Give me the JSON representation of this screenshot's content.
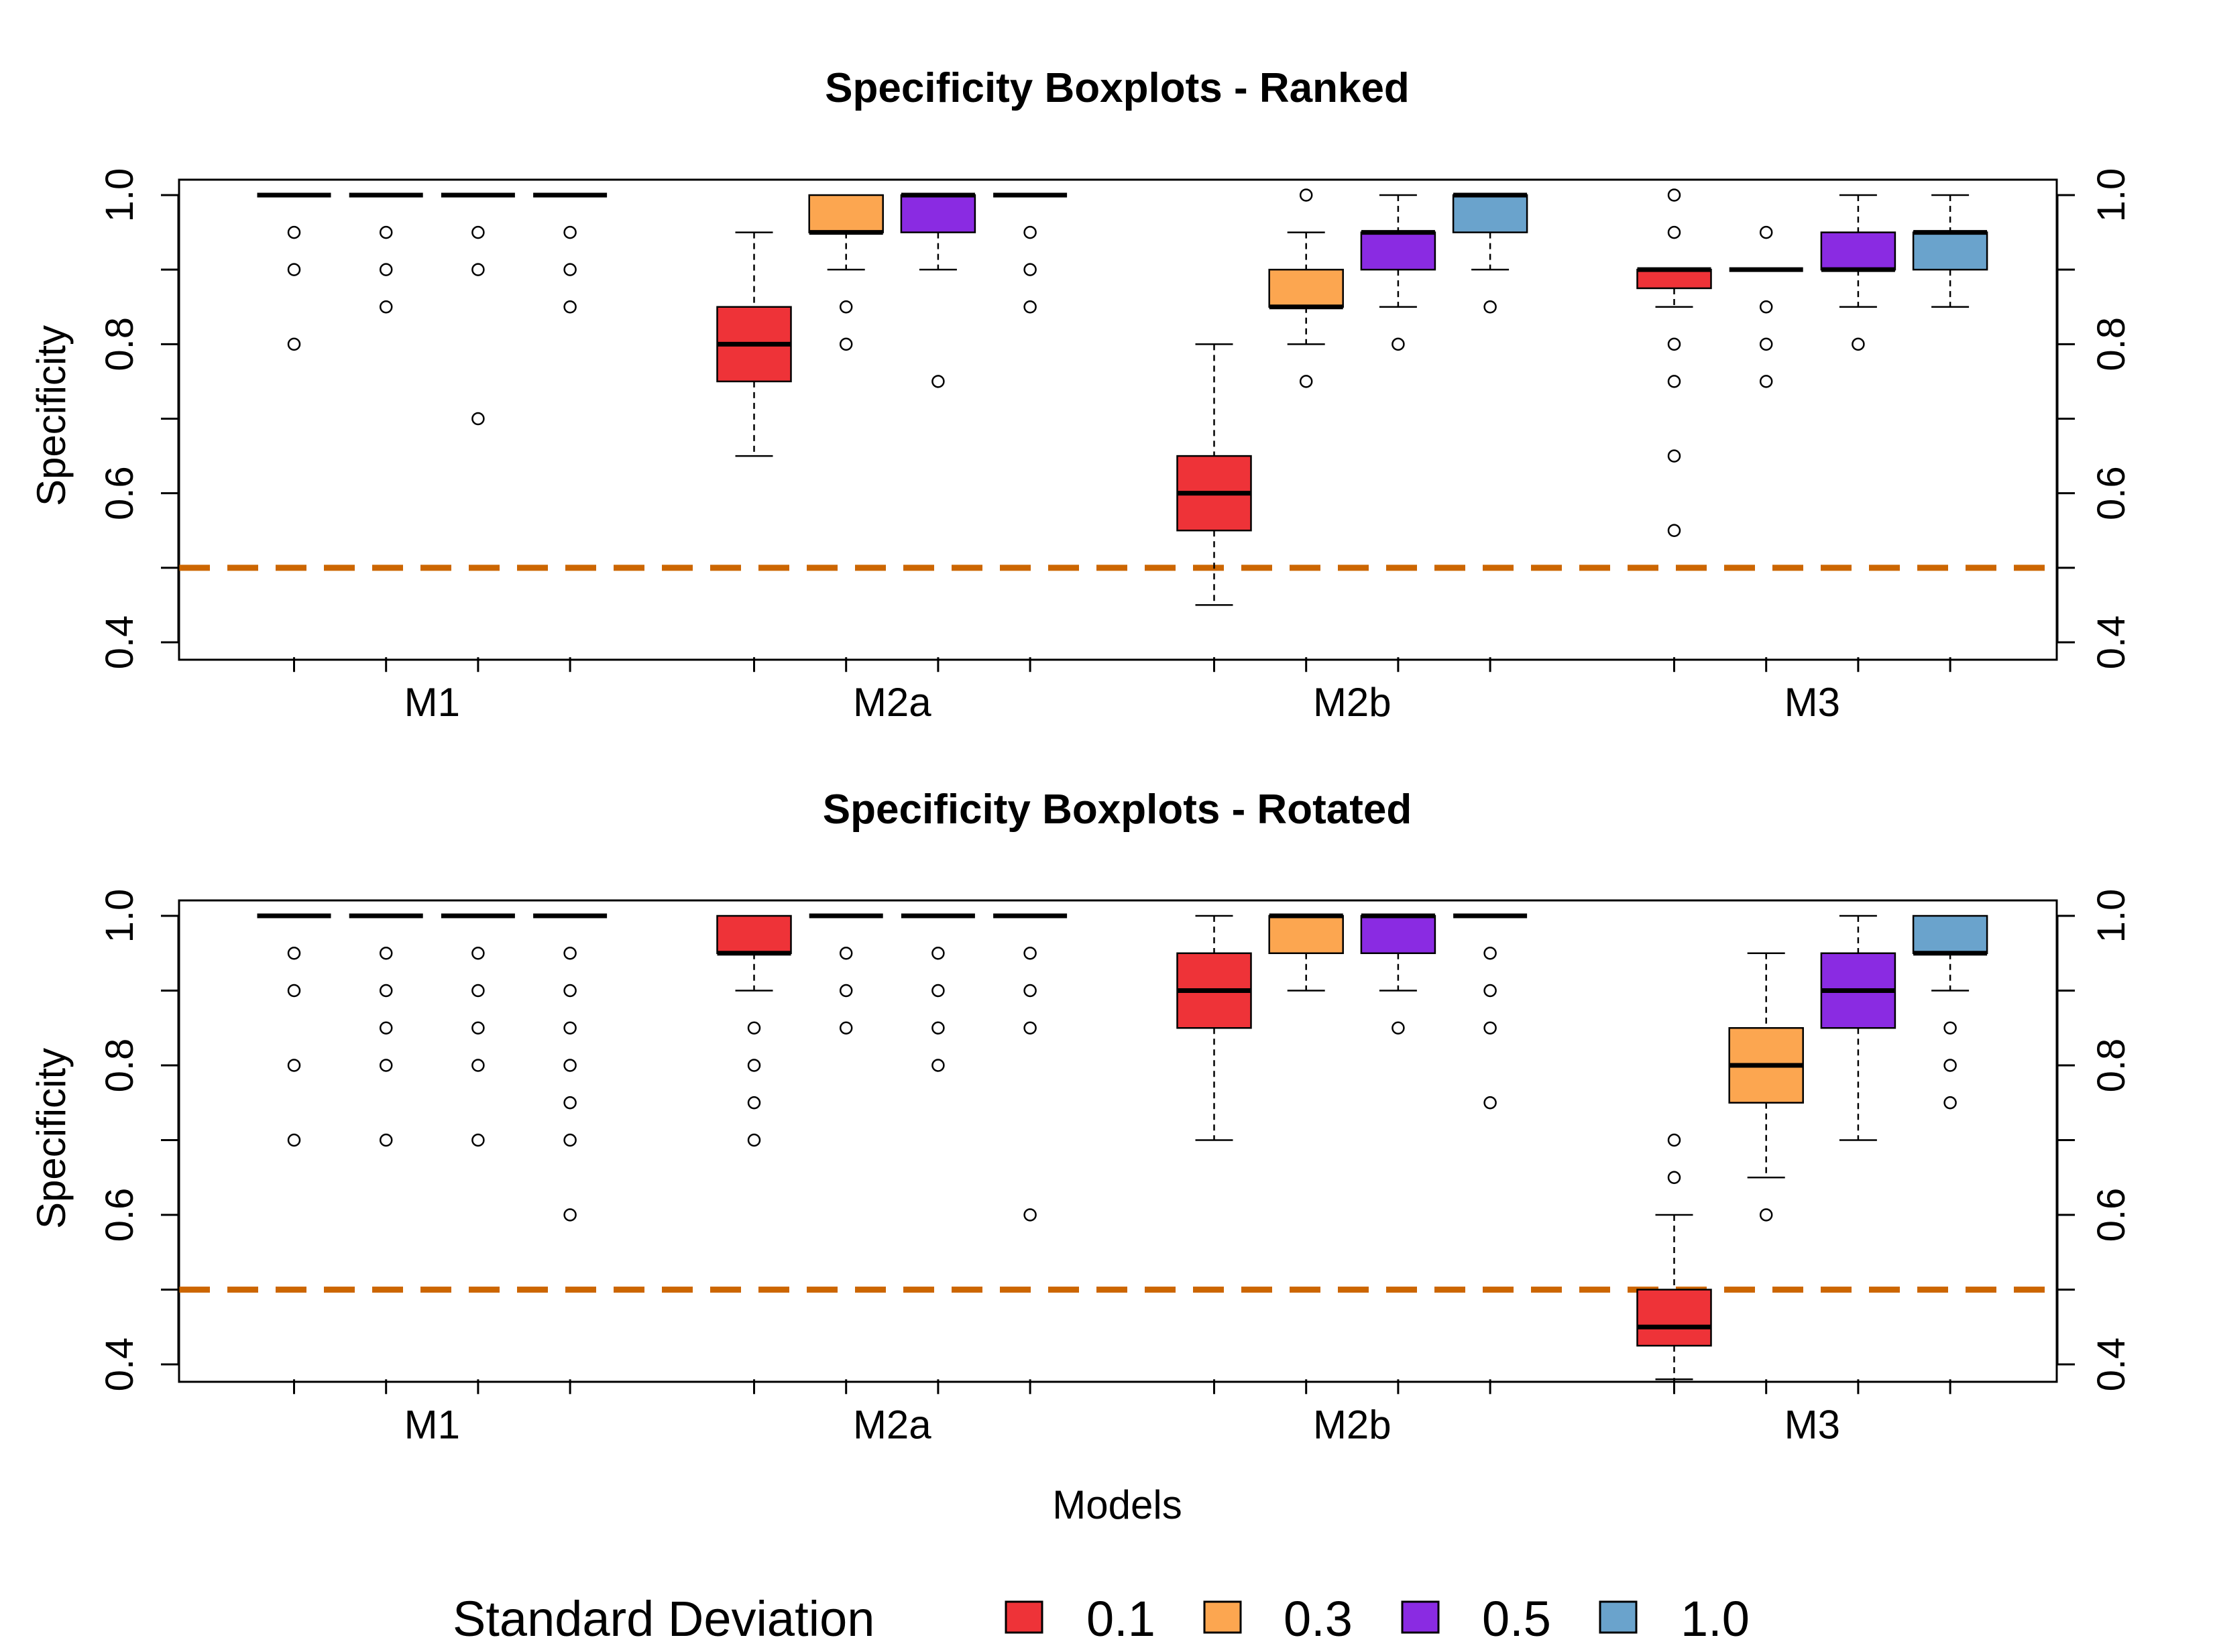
{
  "colors": {
    "sd_0.1": "#ee3338",
    "sd_0.3": "#fca650",
    "sd_0.5": "#8a2be2",
    "sd_1.0": "#6aa3cc",
    "reference_line": "#cc6600"
  },
  "legend": {
    "title": "Standard Deviation",
    "entries": [
      {
        "label": "0.1",
        "color": "#ee3338"
      },
      {
        "label": "0.3",
        "color": "#fca650"
      },
      {
        "label": "0.5",
        "color": "#8a2be2"
      },
      {
        "label": "1.0",
        "color": "#6aa3cc"
      }
    ],
    "placement": "bottom"
  },
  "chart_data": [
    {
      "type": "boxplot",
      "title": "Specificity Boxplots - Ranked",
      "xlabel": "",
      "ylabel": "Specificity",
      "ylim": [
        0.38,
        1.02
      ],
      "yticks": [
        "0.4",
        "0.6",
        "0.8",
        "1.0"
      ],
      "right_axis": true,
      "reference_line": 0.5,
      "categories": [
        "M1",
        "M2a",
        "M2b",
        "M3"
      ],
      "series_names": [
        "0.1",
        "0.3",
        "0.5",
        "1.0"
      ],
      "groups": [
        {
          "category": "M1",
          "boxes": [
            {
              "q1": 1.0,
              "median": 1.0,
              "q3": 1.0,
              "lo": 1.0,
              "hi": 1.0,
              "outliers": [
                0.95,
                0.9,
                0.8
              ]
            },
            {
              "q1": 1.0,
              "median": 1.0,
              "q3": 1.0,
              "lo": 1.0,
              "hi": 1.0,
              "outliers": [
                0.95,
                0.9,
                0.85
              ]
            },
            {
              "q1": 1.0,
              "median": 1.0,
              "q3": 1.0,
              "lo": 1.0,
              "hi": 1.0,
              "outliers": [
                0.95,
                0.9,
                0.7
              ]
            },
            {
              "q1": 1.0,
              "median": 1.0,
              "q3": 1.0,
              "lo": 1.0,
              "hi": 1.0,
              "outliers": [
                0.95,
                0.9,
                0.85
              ]
            }
          ]
        },
        {
          "category": "M2a",
          "boxes": [
            {
              "q1": 0.75,
              "median": 0.8,
              "q3": 0.85,
              "lo": 0.65,
              "hi": 0.95,
              "outliers": []
            },
            {
              "q1": 0.95,
              "median": 0.95,
              "q3": 1.0,
              "lo": 0.9,
              "hi": 1.0,
              "outliers": [
                0.85,
                0.8
              ]
            },
            {
              "q1": 0.95,
              "median": 1.0,
              "q3": 1.0,
              "lo": 0.9,
              "hi": 1.0,
              "outliers": [
                0.75
              ]
            },
            {
              "q1": 1.0,
              "median": 1.0,
              "q3": 1.0,
              "lo": 1.0,
              "hi": 1.0,
              "outliers": [
                0.95,
                0.9,
                0.85
              ]
            }
          ]
        },
        {
          "category": "M2b",
          "boxes": [
            {
              "q1": 0.55,
              "median": 0.6,
              "q3": 0.65,
              "lo": 0.45,
              "hi": 0.8,
              "outliers": []
            },
            {
              "q1": 0.85,
              "median": 0.85,
              "q3": 0.9,
              "lo": 0.8,
              "hi": 0.95,
              "outliers": [
                1.0,
                0.75
              ]
            },
            {
              "q1": 0.9,
              "median": 0.95,
              "q3": 0.95,
              "lo": 0.85,
              "hi": 1.0,
              "outliers": [
                0.8
              ]
            },
            {
              "q1": 0.95,
              "median": 1.0,
              "q3": 1.0,
              "lo": 0.9,
              "hi": 1.0,
              "outliers": [
                0.85
              ]
            }
          ]
        },
        {
          "category": "M3",
          "boxes": [
            {
              "q1": 0.875,
              "median": 0.9,
              "q3": 0.9,
              "lo": 0.85,
              "hi": 0.9,
              "outliers": [
                1.0,
                0.95,
                0.8,
                0.75,
                0.65,
                0.55
              ]
            },
            {
              "q1": 0.9,
              "median": 0.9,
              "q3": 0.9,
              "lo": 0.9,
              "hi": 0.9,
              "outliers": [
                0.95,
                0.85,
                0.8,
                0.75
              ]
            },
            {
              "q1": 0.9,
              "median": 0.9,
              "q3": 0.95,
              "lo": 0.85,
              "hi": 1.0,
              "outliers": [
                0.8
              ]
            },
            {
              "q1": 0.9,
              "median": 0.95,
              "q3": 0.95,
              "lo": 0.85,
              "hi": 1.0,
              "outliers": []
            }
          ]
        }
      ]
    },
    {
      "type": "boxplot",
      "title": "Specificity Boxplots - Rotated",
      "xlabel": "Models",
      "ylabel": "Specificity",
      "ylim": [
        0.38,
        1.02
      ],
      "yticks": [
        "0.4",
        "0.6",
        "0.8",
        "1.0"
      ],
      "right_axis": true,
      "reference_line": 0.5,
      "categories": [
        "M1",
        "M2a",
        "M2b",
        "M3"
      ],
      "series_names": [
        "0.1",
        "0.3",
        "0.5",
        "1.0"
      ],
      "groups": [
        {
          "category": "M1",
          "boxes": [
            {
              "q1": 1.0,
              "median": 1.0,
              "q3": 1.0,
              "lo": 1.0,
              "hi": 1.0,
              "outliers": [
                0.95,
                0.9,
                0.8,
                0.7
              ]
            },
            {
              "q1": 1.0,
              "median": 1.0,
              "q3": 1.0,
              "lo": 1.0,
              "hi": 1.0,
              "outliers": [
                0.95,
                0.9,
                0.85,
                0.8,
                0.7
              ]
            },
            {
              "q1": 1.0,
              "median": 1.0,
              "q3": 1.0,
              "lo": 1.0,
              "hi": 1.0,
              "outliers": [
                0.95,
                0.9,
                0.85,
                0.8,
                0.7
              ]
            },
            {
              "q1": 1.0,
              "median": 1.0,
              "q3": 1.0,
              "lo": 1.0,
              "hi": 1.0,
              "outliers": [
                0.95,
                0.9,
                0.85,
                0.8,
                0.75,
                0.7,
                0.6
              ]
            }
          ]
        },
        {
          "category": "M2a",
          "boxes": [
            {
              "q1": 0.95,
              "median": 0.95,
              "q3": 1.0,
              "lo": 0.9,
              "hi": 1.0,
              "outliers": [
                0.85,
                0.8,
                0.75,
                0.7
              ]
            },
            {
              "q1": 1.0,
              "median": 1.0,
              "q3": 1.0,
              "lo": 1.0,
              "hi": 1.0,
              "outliers": [
                0.95,
                0.9,
                0.85
              ]
            },
            {
              "q1": 1.0,
              "median": 1.0,
              "q3": 1.0,
              "lo": 1.0,
              "hi": 1.0,
              "outliers": [
                0.95,
                0.9,
                0.85,
                0.8
              ]
            },
            {
              "q1": 1.0,
              "median": 1.0,
              "q3": 1.0,
              "lo": 1.0,
              "hi": 1.0,
              "outliers": [
                0.95,
                0.9,
                0.85,
                0.6
              ]
            }
          ]
        },
        {
          "category": "M2b",
          "boxes": [
            {
              "q1": 0.85,
              "median": 0.9,
              "q3": 0.95,
              "lo": 0.7,
              "hi": 1.0,
              "outliers": []
            },
            {
              "q1": 0.95,
              "median": 1.0,
              "q3": 1.0,
              "lo": 0.9,
              "hi": 1.0,
              "outliers": []
            },
            {
              "q1": 0.95,
              "median": 1.0,
              "q3": 1.0,
              "lo": 0.9,
              "hi": 1.0,
              "outliers": [
                0.85
              ]
            },
            {
              "q1": 1.0,
              "median": 1.0,
              "q3": 1.0,
              "lo": 1.0,
              "hi": 1.0,
              "outliers": [
                0.95,
                0.9,
                0.85,
                0.75
              ]
            }
          ]
        },
        {
          "category": "M3",
          "boxes": [
            {
              "q1": 0.425,
              "median": 0.45,
              "q3": 0.5,
              "lo": 0.38,
              "hi": 0.6,
              "outliers": [
                0.7,
                0.65
              ]
            },
            {
              "q1": 0.75,
              "median": 0.8,
              "q3": 0.85,
              "lo": 0.65,
              "hi": 0.95,
              "outliers": [
                0.6
              ]
            },
            {
              "q1": 0.85,
              "median": 0.9,
              "q3": 0.95,
              "lo": 0.7,
              "hi": 1.0,
              "outliers": []
            },
            {
              "q1": 0.95,
              "median": 0.95,
              "q3": 1.0,
              "lo": 0.9,
              "hi": 1.0,
              "outliers": [
                0.85,
                0.8,
                0.75
              ]
            }
          ]
        }
      ]
    }
  ]
}
